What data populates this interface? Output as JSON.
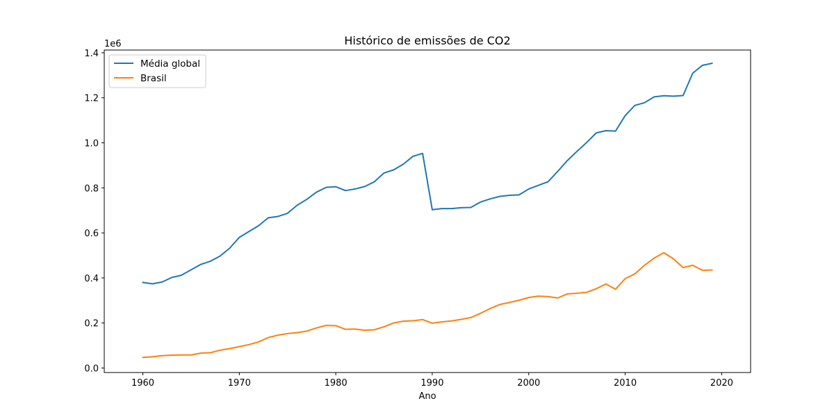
{
  "chart_data": {
    "type": "line",
    "title": "Histórico de emissões de CO2",
    "xlabel": "Ano",
    "ylabel": "",
    "y_scale_label": "1e6",
    "y_scale": 1000000,
    "xlim": [
      1956,
      2023
    ],
    "ylim": [
      -20000,
      1412000
    ],
    "x_ticks": [
      1960,
      1970,
      1980,
      1990,
      2000,
      2010,
      2020
    ],
    "y_ticks": [
      0,
      200000,
      400000,
      600000,
      800000,
      1000000,
      1200000,
      1400000
    ],
    "y_tick_labels": [
      "0.0",
      "0.2",
      "0.4",
      "0.6",
      "0.8",
      "1.0",
      "1.2",
      "1.4"
    ],
    "grid": false,
    "legend_position": "top-left",
    "x": [
      1960,
      1961,
      1962,
      1963,
      1964,
      1965,
      1966,
      1967,
      1968,
      1969,
      1970,
      1971,
      1972,
      1973,
      1974,
      1975,
      1976,
      1977,
      1978,
      1979,
      1980,
      1981,
      1982,
      1983,
      1984,
      1985,
      1986,
      1987,
      1988,
      1989,
      1990,
      1991,
      1992,
      1993,
      1994,
      1995,
      1996,
      1997,
      1998,
      1999,
      2000,
      2001,
      2002,
      2003,
      2004,
      2005,
      2006,
      2007,
      2008,
      2009,
      2010,
      2011,
      2012,
      2013,
      2014,
      2015,
      2016,
      2017,
      2018,
      2019
    ],
    "series": [
      {
        "name": "Média global",
        "color": "#1f77b4",
        "values": [
          380000,
          374000,
          382000,
          402000,
          412000,
          436000,
          460000,
          474000,
          497000,
          532000,
          580000,
          606000,
          632000,
          667000,
          673000,
          687000,
          723000,
          749000,
          781000,
          802000,
          805000,
          788000,
          795000,
          806000,
          827000,
          866000,
          880000,
          905000,
          940000,
          953000,
          703000,
          708000,
          708000,
          712000,
          713000,
          737000,
          751000,
          762000,
          767000,
          769000,
          795000,
          811000,
          827000,
          873000,
          921000,
          962000,
          1001000,
          1044000,
          1054000,
          1052000,
          1121000,
          1166000,
          1178000,
          1204000,
          1209000,
          1207000,
          1210000,
          1309000,
          1344000,
          1353000
        ]
      },
      {
        "name": "Brasil",
        "color": "#ff7f0e",
        "values": [
          47000,
          50000,
          55000,
          57000,
          58000,
          58000,
          66000,
          68000,
          79000,
          86000,
          95000,
          104000,
          116000,
          135000,
          146000,
          153000,
          157000,
          164000,
          178000,
          189000,
          188000,
          172000,
          173000,
          168000,
          170000,
          183000,
          200000,
          208000,
          210000,
          215000,
          199000,
          205000,
          209000,
          216000,
          224000,
          243000,
          264000,
          282000,
          291000,
          301000,
          313000,
          319000,
          317000,
          311000,
          329000,
          332000,
          336000,
          352000,
          373000,
          350000,
          397000,
          418000,
          456000,
          488000,
          512000,
          485000,
          446000,
          456000,
          434000,
          435000
        ]
      }
    ]
  }
}
